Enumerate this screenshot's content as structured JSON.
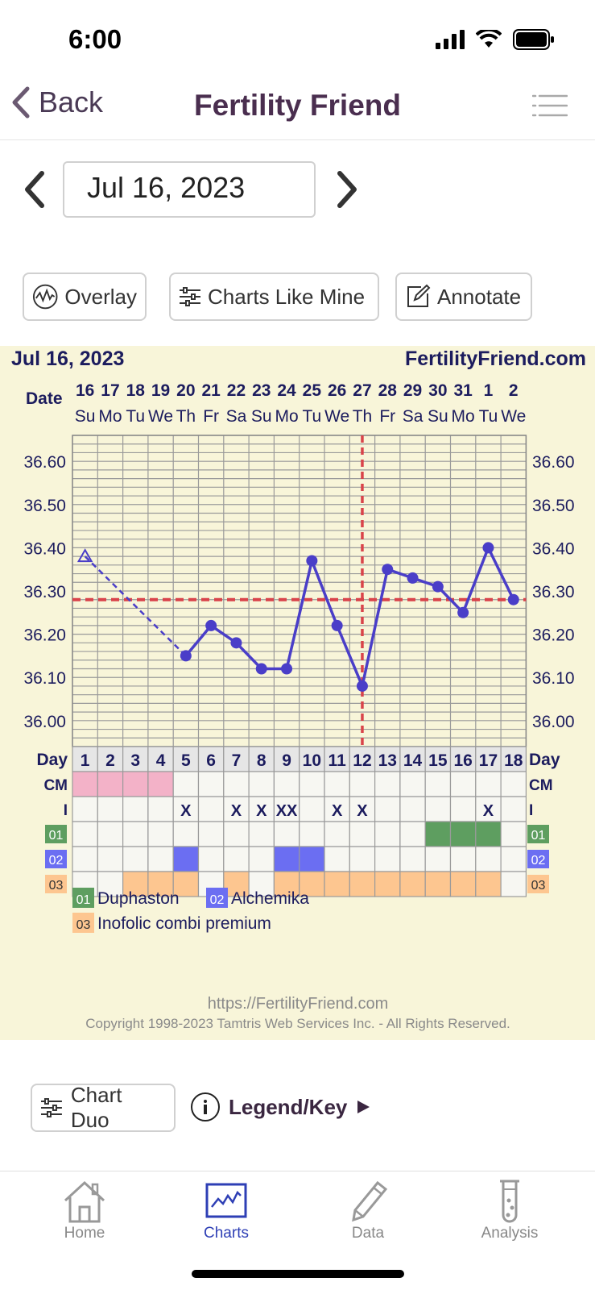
{
  "status_bar": {
    "time": "6:00"
  },
  "nav": {
    "back_label": "Back",
    "title": "Fertility Friend"
  },
  "date_selector": {
    "value": "Jul 16, 2023"
  },
  "toolbar": {
    "overlay": "Overlay",
    "charts_like_mine": "Charts Like Mine",
    "annotate": "Annotate"
  },
  "chart_header": {
    "date": "Jul 16, 2023",
    "site": "FertilityFriend.com",
    "date_row_label": "Date"
  },
  "chart_data": {
    "type": "line",
    "dates": [
      "16",
      "17",
      "18",
      "19",
      "20",
      "21",
      "22",
      "23",
      "24",
      "25",
      "26",
      "27",
      "28",
      "29",
      "30",
      "31",
      "1",
      "2"
    ],
    "weekdays": [
      "Su",
      "Mo",
      "Tu",
      "We",
      "Th",
      "Fr",
      "Sa",
      "Su",
      "Mo",
      "Tu",
      "We",
      "Th",
      "Fr",
      "Sa",
      "Su",
      "Mo",
      "Tu",
      "We"
    ],
    "cycle_days": [
      "1",
      "2",
      "3",
      "4",
      "5",
      "6",
      "7",
      "8",
      "9",
      "10",
      "11",
      "12",
      "13",
      "14",
      "15",
      "16",
      "17",
      "18"
    ],
    "temperatures": [
      36.38,
      null,
      null,
      null,
      36.15,
      36.22,
      36.18,
      36.12,
      36.12,
      36.37,
      36.22,
      36.08,
      36.35,
      36.33,
      36.31,
      36.25,
      36.4,
      36.28
    ],
    "discarded_points": [
      0
    ],
    "y_ticks": [
      "36.60",
      "36.50",
      "36.40",
      "36.30",
      "36.20",
      "36.10",
      "36.00"
    ],
    "ylim": [
      35.94,
      36.66
    ],
    "coverline": 36.28,
    "ovulation_day": 12,
    "grid": true
  },
  "table": {
    "row_labels": {
      "day": "Day",
      "cm": "CM",
      "i": "I",
      "m1": "01",
      "m2": "02",
      "m3": "03"
    },
    "cm_marked_days": [
      1,
      2,
      3,
      4
    ],
    "i_marks": [
      "",
      "",
      "",
      "",
      "X",
      "",
      "X",
      "X",
      "XX",
      "",
      "X",
      "X",
      "",
      "",
      "",
      "",
      "X",
      ""
    ],
    "med1_days": [
      15,
      16,
      17
    ],
    "med2_days": [
      5,
      9,
      10
    ],
    "med3_days": [
      3,
      4,
      5,
      7,
      9,
      10,
      11,
      12,
      13,
      14,
      15,
      16,
      17
    ]
  },
  "medications": [
    {
      "code": "01",
      "name": "Duphaston",
      "color": "#5e9e60"
    },
    {
      "code": "02",
      "name": "Alchemika",
      "color": "#6b6ef2"
    },
    {
      "code": "03",
      "name": "Inofolic combi premium",
      "color": "#fdc690"
    }
  ],
  "footer": {
    "url": "https://FertilityFriend.com",
    "copyright": "Copyright 1998-2023 Tamtris Web Services Inc. - All Rights Reserved."
  },
  "bottom_actions": {
    "chart_duo": "Chart Duo",
    "legend_key": "Legend/Key"
  },
  "tabs": [
    {
      "label": "Home",
      "icon": "home-icon"
    },
    {
      "label": "Charts",
      "icon": "charts-icon"
    },
    {
      "label": "Data",
      "icon": "pencil-icon"
    },
    {
      "label": "Analysis",
      "icon": "test-tube-icon"
    }
  ],
  "colors": {
    "accent": "#2e3fb5",
    "line": "#4a3ec8",
    "coverline": "#d9434a",
    "chart_bg": "#f8f5d9",
    "title": "#4a2e4f"
  }
}
